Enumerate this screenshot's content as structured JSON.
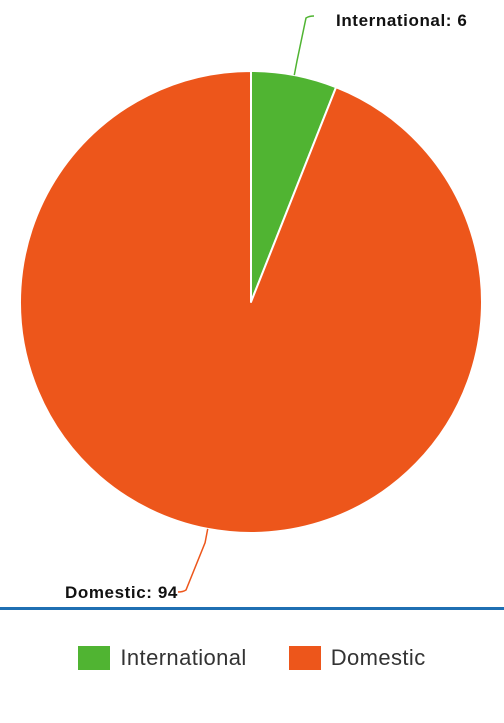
{
  "chart_data": {
    "type": "pie",
    "title": "",
    "categories": [
      "International",
      "Domestic"
    ],
    "values": [
      6,
      94
    ],
    "colors": [
      "#50b432",
      "#ed561b"
    ],
    "data_labels": [
      "International: 6",
      "Domestic: 94"
    ],
    "legend": {
      "position": "bottom",
      "entries": [
        "International",
        "Domestic"
      ]
    }
  }
}
